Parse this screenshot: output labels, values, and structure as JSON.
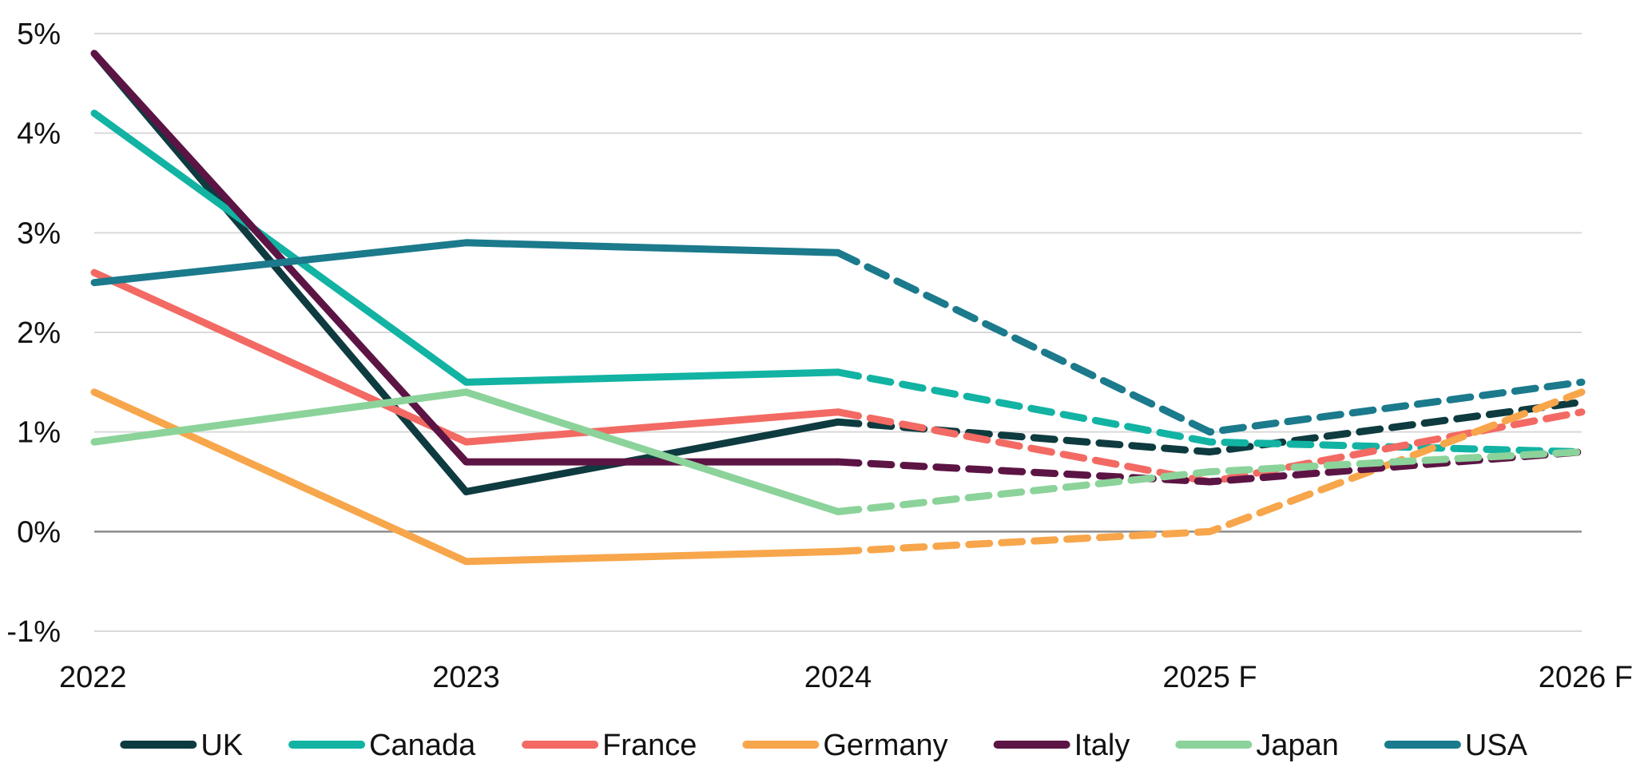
{
  "chart_data": {
    "type": "line",
    "title": "",
    "xlabel": "",
    "ylabel": "",
    "categories": [
      "2022",
      "2023",
      "2024",
      "2025 F",
      "2026 F"
    ],
    "forecast_start_index": 2,
    "ylim": [
      -1,
      5
    ],
    "yticks": [
      -1,
      0,
      1,
      2,
      3,
      4,
      5
    ],
    "ytick_labels": [
      "-1%",
      "0%",
      "1%",
      "2%",
      "3%",
      "4%",
      "5%"
    ],
    "grid": true,
    "legend_position": "bottom",
    "series": [
      {
        "name": "UK",
        "color": "#0e3b3f",
        "values": [
          4.8,
          0.4,
          1.1,
          0.8,
          1.3
        ]
      },
      {
        "name": "Canada",
        "color": "#12b3a3",
        "values": [
          4.2,
          1.5,
          1.6,
          0.9,
          0.8
        ]
      },
      {
        "name": "France",
        "color": "#f26a63",
        "values": [
          2.6,
          0.9,
          1.2,
          0.5,
          1.2
        ]
      },
      {
        "name": "Germany",
        "color": "#f7a64b",
        "values": [
          1.4,
          -0.3,
          -0.2,
          0.0,
          1.4
        ]
      },
      {
        "name": "Italy",
        "color": "#5c1444",
        "values": [
          4.8,
          0.7,
          0.7,
          0.5,
          0.8
        ]
      },
      {
        "name": "Japan",
        "color": "#8bd39a",
        "values": [
          0.9,
          1.4,
          0.2,
          0.6,
          0.8
        ]
      },
      {
        "name": "USA",
        "color": "#1b7a8c",
        "values": [
          2.5,
          2.9,
          2.8,
          1.0,
          1.5
        ]
      }
    ]
  }
}
